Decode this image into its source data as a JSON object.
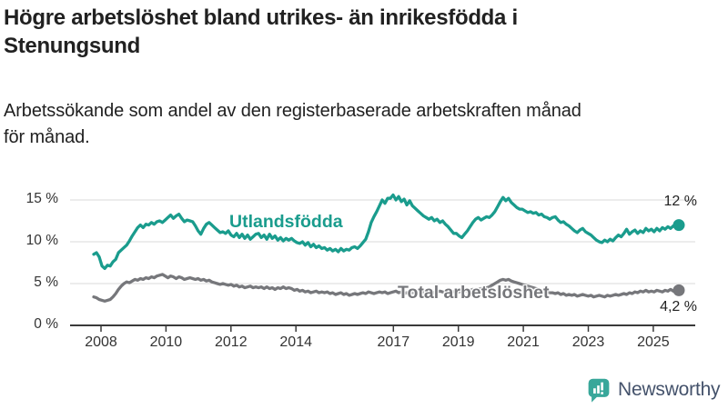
{
  "header": {
    "title_lines": [
      "Högre arbetslöshet bland utrikes- än inrikesfödda i",
      "Stenungsund"
    ],
    "subtitle_lines": [
      "Arbetssökande som andel av den registerbaserade arbetskraften månad",
      "för månad."
    ]
  },
  "chart_data": {
    "type": "line",
    "title": "Högre arbetslöshet bland utrikes- än inrikesfödda i Stenungsund",
    "subtitle": "Arbetssökande som andel av den registerbaserade arbetskraften månad för månad.",
    "unit": "%",
    "frequency": "monthly",
    "x_start": "2008-01",
    "x_end": "2025-10",
    "x_tick_labels": [
      2008,
      2010,
      2012,
      2014,
      2017,
      2019,
      2021,
      2023,
      2025
    ],
    "y_ticks": [
      0,
      5,
      10,
      15
    ],
    "y_tick_labels": [
      "0 %",
      "5 %",
      "10 %",
      "15 %"
    ],
    "ylim": [
      0,
      16.5
    ],
    "grid": true,
    "series": [
      {
        "name": "Utlandsfödda",
        "color": "#1a9c8d",
        "end_label": "12 %",
        "end_value": 12.0,
        "values": [
          8.5,
          8.7,
          8.2,
          7.1,
          6.8,
          7.2,
          7.1,
          7.6,
          7.9,
          8.7,
          9.0,
          9.3,
          9.6,
          10.1,
          10.7,
          11.2,
          11.7,
          12.0,
          11.7,
          12.1,
          12.0,
          12.3,
          12.1,
          12.4,
          12.5,
          12.3,
          12.6,
          12.9,
          13.2,
          12.8,
          13.1,
          13.3,
          12.8,
          12.4,
          12.6,
          12.5,
          12.4,
          11.9,
          11.3,
          10.9,
          11.6,
          12.1,
          12.3,
          12.0,
          11.7,
          11.4,
          11.1,
          11.2,
          11.0,
          11.3,
          10.8,
          10.6,
          11.0,
          10.5,
          10.9,
          10.4,
          10.8,
          10.3,
          10.6,
          10.9,
          11.0,
          10.5,
          10.8,
          10.3,
          10.9,
          10.4,
          10.7,
          10.2,
          10.5,
          10.1,
          10.4,
          10.2,
          10.4,
          10.1,
          9.9,
          9.8,
          10.0,
          9.6,
          9.9,
          9.4,
          9.7,
          9.3,
          9.5,
          9.2,
          9.3,
          9.0,
          9.2,
          8.9,
          9.1,
          8.8,
          9.2,
          8.9,
          9.1,
          9.0,
          9.3,
          9.4,
          9.2,
          9.5,
          9.9,
          10.3,
          11.2,
          12.3,
          13.0,
          13.6,
          14.3,
          15.0,
          14.6,
          15.2,
          15.2,
          15.6,
          15.0,
          15.4,
          14.8,
          15.1,
          14.4,
          14.9,
          14.3,
          14.0,
          13.7,
          13.4,
          13.1,
          12.9,
          12.7,
          12.9,
          12.5,
          12.7,
          12.3,
          12.5,
          12.1,
          11.8,
          11.4,
          11.0,
          11.0,
          10.7,
          10.5,
          10.9,
          11.3,
          11.8,
          12.3,
          12.7,
          12.9,
          12.6,
          12.8,
          13.0,
          12.9,
          13.2,
          13.6,
          14.2,
          14.8,
          15.3,
          14.9,
          15.2,
          14.7,
          14.4,
          14.1,
          13.9,
          13.9,
          13.7,
          13.5,
          13.6,
          13.4,
          13.5,
          13.2,
          13.3,
          13.0,
          12.9,
          12.7,
          12.9,
          13.0,
          12.6,
          12.3,
          12.4,
          12.1,
          11.9,
          11.6,
          11.3,
          11.1,
          11.4,
          11.6,
          11.2,
          11.0,
          10.8,
          10.5,
          10.2,
          10.0,
          9.9,
          10.2,
          10.0,
          10.3,
          10.1,
          10.5,
          10.8,
          10.6,
          11.0,
          11.5,
          10.9,
          11.2,
          11.4,
          11.0,
          11.3,
          11.1,
          11.6,
          11.3,
          11.5,
          11.2,
          11.6,
          11.3,
          11.7,
          11.5,
          11.8,
          11.6,
          11.9,
          11.7,
          12.0
        ]
      },
      {
        "name": "Total arbetslöshet",
        "color": "#76777b",
        "end_label": "4,2 %",
        "end_value": 4.2,
        "values": [
          3.4,
          3.3,
          3.1,
          3.0,
          2.9,
          3.0,
          3.1,
          3.4,
          3.8,
          4.3,
          4.7,
          5.0,
          5.2,
          5.1,
          5.3,
          5.5,
          5.4,
          5.6,
          5.5,
          5.7,
          5.6,
          5.8,
          5.7,
          5.9,
          6.0,
          6.1,
          5.9,
          5.7,
          5.9,
          5.8,
          5.6,
          5.8,
          5.7,
          5.5,
          5.6,
          5.7,
          5.6,
          5.5,
          5.6,
          5.4,
          5.5,
          5.3,
          5.4,
          5.2,
          5.1,
          5.0,
          4.9,
          5.0,
          4.9,
          4.8,
          4.9,
          4.7,
          4.8,
          4.6,
          4.7,
          4.5,
          4.6,
          4.7,
          4.5,
          4.6,
          4.5,
          4.6,
          4.4,
          4.6,
          4.4,
          4.5,
          4.3,
          4.5,
          4.4,
          4.6,
          4.4,
          4.5,
          4.4,
          4.2,
          4.3,
          4.1,
          4.2,
          4.0,
          4.1,
          3.9,
          4.0,
          4.1,
          3.9,
          4.0,
          3.9,
          4.0,
          3.8,
          3.9,
          3.7,
          3.8,
          3.9,
          3.7,
          3.8,
          3.6,
          3.7,
          3.8,
          3.7,
          3.8,
          3.9,
          3.8,
          4.0,
          3.9,
          3.8,
          3.9,
          4.0,
          3.9,
          4.0,
          3.8,
          3.9,
          4.0,
          4.1,
          3.9,
          4.0,
          3.8,
          3.9,
          4.0,
          3.9,
          4.1,
          4.0,
          4.1,
          4.0,
          4.1,
          3.9,
          4.0,
          3.9,
          4.0,
          4.1,
          4.0,
          3.9,
          4.0,
          4.1,
          4.0,
          4.1,
          4.0,
          4.1,
          4.2,
          4.1,
          4.2,
          4.3,
          4.2,
          4.3,
          4.4,
          4.3,
          4.5,
          4.6,
          4.8,
          5.0,
          5.2,
          5.4,
          5.5,
          5.4,
          5.5,
          5.3,
          5.2,
          5.1,
          5.0,
          4.9,
          4.8,
          4.7,
          4.6,
          4.5,
          4.4,
          4.3,
          4.2,
          4.1,
          4.0,
          3.9,
          3.9,
          3.8,
          3.9,
          3.7,
          3.8,
          3.6,
          3.7,
          3.6,
          3.7,
          3.5,
          3.6,
          3.7,
          3.6,
          3.5,
          3.6,
          3.4,
          3.5,
          3.6,
          3.5,
          3.4,
          3.6,
          3.5,
          3.6,
          3.7,
          3.6,
          3.7,
          3.8,
          3.7,
          3.9,
          3.8,
          4.0,
          3.9,
          4.1,
          4.0,
          4.2,
          4.0,
          4.1,
          4.0,
          4.2,
          4.1,
          4.0,
          4.2,
          4.1,
          4.3,
          4.1,
          4.2,
          4.2
        ]
      }
    ],
    "legend_position": "inline-labels"
  },
  "colors": {
    "accent_teal": "#1a9c8d",
    "line_gray": "#76777b",
    "axis": "#3a3a3a",
    "grid": "#d9d9d9",
    "text": "#212121",
    "tick_text": "#333333",
    "brand_icon": "#38a79a",
    "brand_text": "#44526b"
  },
  "footer": {
    "brand": "Newsworthy"
  }
}
